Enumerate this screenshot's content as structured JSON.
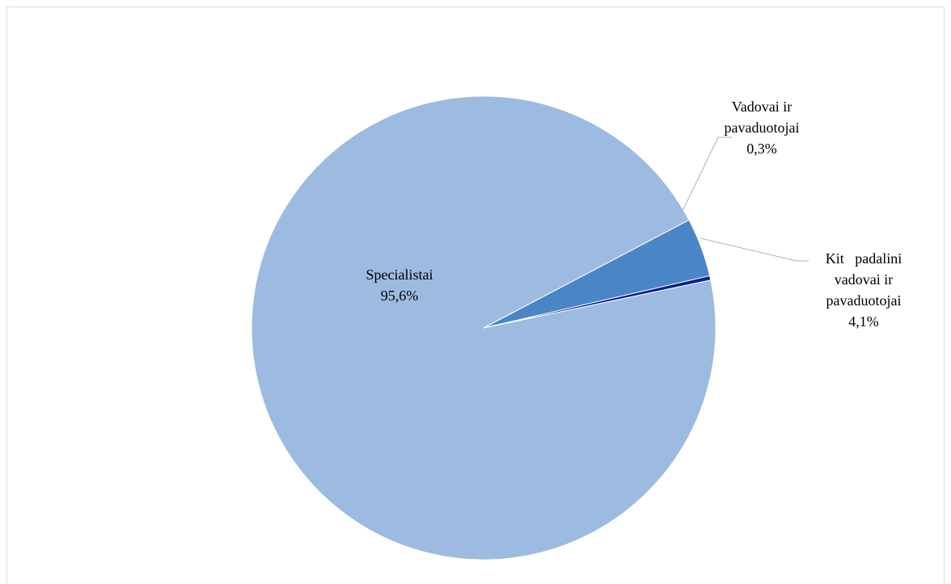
{
  "chart_data": {
    "type": "pie",
    "slices": [
      {
        "label_lines": [
          "Kit   padalini",
          "vadovai ir",
          "pavaduotojai"
        ],
        "value": 4.1,
        "value_label": "4,1%",
        "color": "#4a86c5"
      },
      {
        "label_lines": [
          "Specialistai"
        ],
        "value": 95.6,
        "value_label": "95,6%",
        "color": "#9dbbe1"
      },
      {
        "label_lines": [
          "Vadovai ir",
          "pavaduotojai"
        ],
        "value": 0.3,
        "value_label": "0,3%",
        "color": "#0b1f8f"
      }
    ],
    "legend": "none",
    "leader_line_color": "#a6b6c9"
  }
}
